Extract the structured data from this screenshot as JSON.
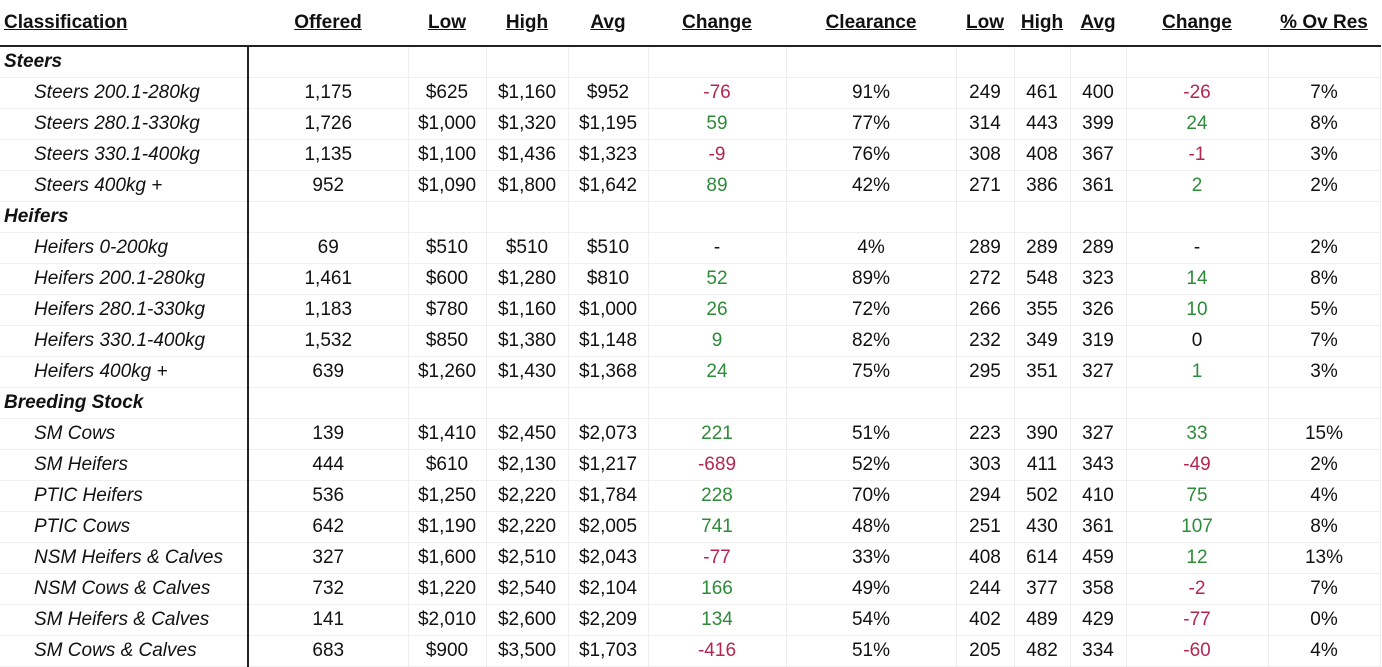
{
  "headers": [
    "Classification",
    "Offered",
    "Low",
    "High",
    "Avg",
    "Change",
    "Clearance",
    "Low",
    "High",
    "Avg",
    "Change",
    "% Ov Res"
  ],
  "groups": [
    {
      "name": "Steers",
      "rows": [
        {
          "classification": "Steers 200.1-280kg",
          "offered": "1,175",
          "low": "$625",
          "high": "$1,160",
          "avg": "$952",
          "change": "-76",
          "change_dir": "neg",
          "clearance": "91%",
          "low2": "249",
          "high2": "461",
          "avg2": "400",
          "change2": "-26",
          "change2_dir": "neg",
          "ov_res": "7%"
        },
        {
          "classification": "Steers 280.1-330kg",
          "offered": "1,726",
          "low": "$1,000",
          "high": "$1,320",
          "avg": "$1,195",
          "change": "59",
          "change_dir": "pos",
          "clearance": "77%",
          "low2": "314",
          "high2": "443",
          "avg2": "399",
          "change2": "24",
          "change2_dir": "pos",
          "ov_res": "8%"
        },
        {
          "classification": "Steers 330.1-400kg",
          "offered": "1,135",
          "low": "$1,100",
          "high": "$1,436",
          "avg": "$1,323",
          "change": "-9",
          "change_dir": "neg",
          "clearance": "76%",
          "low2": "308",
          "high2": "408",
          "avg2": "367",
          "change2": "-1",
          "change2_dir": "neg",
          "ov_res": "3%"
        },
        {
          "classification": "Steers 400kg +",
          "offered": "952",
          "low": "$1,090",
          "high": "$1,800",
          "avg": "$1,642",
          "change": "89",
          "change_dir": "pos",
          "clearance": "42%",
          "low2": "271",
          "high2": "386",
          "avg2": "361",
          "change2": "2",
          "change2_dir": "pos",
          "ov_res": "2%"
        }
      ]
    },
    {
      "name": "Heifers",
      "rows": [
        {
          "classification": "Heifers 0-200kg",
          "offered": "69",
          "low": "$510",
          "high": "$510",
          "avg": "$510",
          "change": "-",
          "change_dir": "neu",
          "clearance": "4%",
          "low2": "289",
          "high2": "289",
          "avg2": "289",
          "change2": "-",
          "change2_dir": "neu",
          "ov_res": "2%"
        },
        {
          "classification": "Heifers 200.1-280kg",
          "offered": "1,461",
          "low": "$600",
          "high": "$1,280",
          "avg": "$810",
          "change": "52",
          "change_dir": "pos",
          "clearance": "89%",
          "low2": "272",
          "high2": "548",
          "avg2": "323",
          "change2": "14",
          "change2_dir": "pos",
          "ov_res": "8%"
        },
        {
          "classification": "Heifers 280.1-330kg",
          "offered": "1,183",
          "low": "$780",
          "high": "$1,160",
          "avg": "$1,000",
          "change": "26",
          "change_dir": "pos",
          "clearance": "72%",
          "low2": "266",
          "high2": "355",
          "avg2": "326",
          "change2": "10",
          "change2_dir": "pos",
          "ov_res": "5%"
        },
        {
          "classification": "Heifers 330.1-400kg",
          "offered": "1,532",
          "low": "$850",
          "high": "$1,380",
          "avg": "$1,148",
          "change": "9",
          "change_dir": "pos",
          "clearance": "82%",
          "low2": "232",
          "high2": "349",
          "avg2": "319",
          "change2": "0",
          "change2_dir": "neu",
          "ov_res": "7%"
        },
        {
          "classification": "Heifers 400kg +",
          "offered": "639",
          "low": "$1,260",
          "high": "$1,430",
          "avg": "$1,368",
          "change": "24",
          "change_dir": "pos",
          "clearance": "75%",
          "low2": "295",
          "high2": "351",
          "avg2": "327",
          "change2": "1",
          "change2_dir": "pos",
          "ov_res": "3%"
        }
      ]
    },
    {
      "name": "Breeding Stock",
      "rows": [
        {
          "classification": "SM Cows",
          "offered": "139",
          "low": "$1,410",
          "high": "$2,450",
          "avg": "$2,073",
          "change": "221",
          "change_dir": "pos",
          "clearance": "51%",
          "low2": "223",
          "high2": "390",
          "avg2": "327",
          "change2": "33",
          "change2_dir": "pos",
          "ov_res": "15%"
        },
        {
          "classification": "SM Heifers",
          "offered": "444",
          "low": "$610",
          "high": "$2,130",
          "avg": "$1,217",
          "change": "-689",
          "change_dir": "neg",
          "clearance": "52%",
          "low2": "303",
          "high2": "411",
          "avg2": "343",
          "change2": "-49",
          "change2_dir": "neg",
          "ov_res": "2%"
        },
        {
          "classification": "PTIC Heifers",
          "offered": "536",
          "low": "$1,250",
          "high": "$2,220",
          "avg": "$1,784",
          "change": "228",
          "change_dir": "pos",
          "clearance": "70%",
          "low2": "294",
          "high2": "502",
          "avg2": "410",
          "change2": "75",
          "change2_dir": "pos",
          "ov_res": "4%"
        },
        {
          "classification": "PTIC Cows",
          "offered": "642",
          "low": "$1,190",
          "high": "$2,220",
          "avg": "$2,005",
          "change": "741",
          "change_dir": "pos",
          "clearance": "48%",
          "low2": "251",
          "high2": "430",
          "avg2": "361",
          "change2": "107",
          "change2_dir": "pos",
          "ov_res": "8%"
        },
        {
          "classification": "NSM Heifers & Calves",
          "offered": "327",
          "low": "$1,600",
          "high": "$2,510",
          "avg": "$2,043",
          "change": "-77",
          "change_dir": "neg",
          "clearance": "33%",
          "low2": "408",
          "high2": "614",
          "avg2": "459",
          "change2": "12",
          "change2_dir": "pos",
          "ov_res": "13%"
        },
        {
          "classification": "NSM Cows & Calves",
          "offered": "732",
          "low": "$1,220",
          "high": "$2,540",
          "avg": "$2,104",
          "change": "166",
          "change_dir": "pos",
          "clearance": "49%",
          "low2": "244",
          "high2": "377",
          "avg2": "358",
          "change2": "-2",
          "change2_dir": "neg",
          "ov_res": "7%"
        },
        {
          "classification": "SM Heifers & Calves",
          "offered": "141",
          "low": "$2,010",
          "high": "$2,600",
          "avg": "$2,209",
          "change": "134",
          "change_dir": "pos",
          "clearance": "54%",
          "low2": "402",
          "high2": "489",
          "avg2": "429",
          "change2": "-77",
          "change2_dir": "neg",
          "ov_res": "0%"
        },
        {
          "classification": "SM Cows & Calves",
          "offered": "683",
          "low": "$900",
          "high": "$3,500",
          "avg": "$1,703",
          "change": "-416",
          "change_dir": "neg",
          "clearance": "51%",
          "low2": "205",
          "high2": "482",
          "avg2": "334",
          "change2": "-60",
          "change2_dir": "neg",
          "ov_res": "4%"
        }
      ]
    }
  ],
  "colors": {
    "positive": "#2e8b3a",
    "negative": "#b3264f"
  }
}
